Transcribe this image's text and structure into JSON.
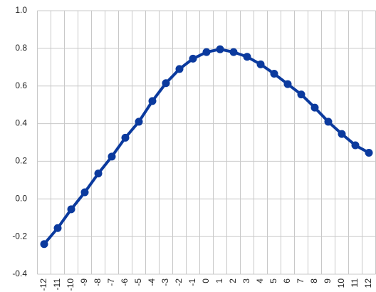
{
  "chart_data": {
    "type": "line",
    "categories": [
      "-12",
      "-11",
      "-10",
      "-9",
      "-8",
      "-7",
      "-6",
      "-5",
      "-4",
      "-3",
      "-2",
      "-1",
      "0",
      "1",
      "2",
      "3",
      "4",
      "5",
      "6",
      "7",
      "8",
      "9",
      "10",
      "11",
      "12"
    ],
    "series": [
      {
        "color": "#0b3a9e",
        "values": [
          -0.24,
          -0.155,
          -0.055,
          0.035,
          0.135,
          0.225,
          0.325,
          0.41,
          0.52,
          0.615,
          0.69,
          0.745,
          0.78,
          0.795,
          0.78,
          0.755,
          0.715,
          0.665,
          0.61,
          0.555,
          0.485,
          0.41,
          0.345,
          0.285,
          0.245
        ]
      }
    ],
    "ylim": [
      -0.4,
      1.0
    ],
    "yticks": [
      {
        "value": -0.4,
        "label": "-0.4"
      },
      {
        "value": -0.2,
        "label": "-0.2"
      },
      {
        "value": 0,
        "label": "0.0"
      },
      {
        "value": 0.2,
        "label": "0.2"
      },
      {
        "value": 0.4,
        "label": "0.4"
      },
      {
        "value": 0.6,
        "label": "0.6"
      },
      {
        "value": 0.8,
        "label": "0.8"
      },
      {
        "value": 1.0,
        "label": "1.0"
      }
    ],
    "grid": true
  }
}
